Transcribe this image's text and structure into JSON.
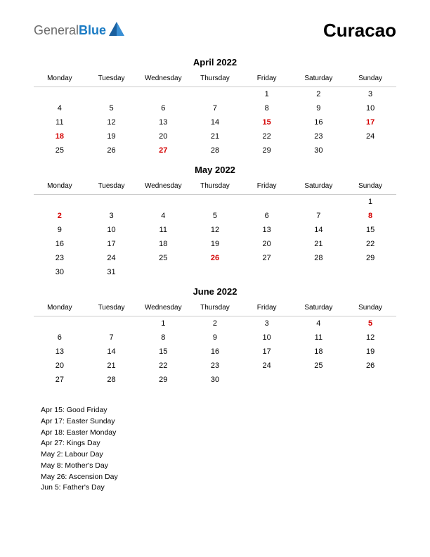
{
  "header": {
    "logo": {
      "general": "General",
      "blue": "Blue",
      "icon_color": "#1a5f9e"
    },
    "region": "Curacao"
  },
  "weekdays": [
    "Monday",
    "Tuesday",
    "Wednesday",
    "Thursday",
    "Friday",
    "Saturday",
    "Sunday"
  ],
  "months": [
    {
      "title": "April 2022",
      "weeks": [
        [
          null,
          null,
          null,
          null,
          {
            "d": 1
          },
          {
            "d": 2
          },
          {
            "d": 3
          }
        ],
        [
          {
            "d": 4
          },
          {
            "d": 5
          },
          {
            "d": 6
          },
          {
            "d": 7
          },
          {
            "d": 8
          },
          {
            "d": 9
          },
          {
            "d": 10
          }
        ],
        [
          {
            "d": 11
          },
          {
            "d": 12
          },
          {
            "d": 13
          },
          {
            "d": 14
          },
          {
            "d": 15,
            "h": true
          },
          {
            "d": 16
          },
          {
            "d": 17,
            "h": true
          }
        ],
        [
          {
            "d": 18,
            "h": true
          },
          {
            "d": 19
          },
          {
            "d": 20
          },
          {
            "d": 21
          },
          {
            "d": 22
          },
          {
            "d": 23
          },
          {
            "d": 24
          }
        ],
        [
          {
            "d": 25
          },
          {
            "d": 26
          },
          {
            "d": 27,
            "h": true
          },
          {
            "d": 28
          },
          {
            "d": 29
          },
          {
            "d": 30
          },
          null
        ]
      ]
    },
    {
      "title": "May 2022",
      "weeks": [
        [
          null,
          null,
          null,
          null,
          null,
          null,
          {
            "d": 1
          }
        ],
        [
          {
            "d": 2,
            "h": true
          },
          {
            "d": 3
          },
          {
            "d": 4
          },
          {
            "d": 5
          },
          {
            "d": 6
          },
          {
            "d": 7
          },
          {
            "d": 8,
            "h": true
          }
        ],
        [
          {
            "d": 9
          },
          {
            "d": 10
          },
          {
            "d": 11
          },
          {
            "d": 12
          },
          {
            "d": 13
          },
          {
            "d": 14
          },
          {
            "d": 15
          }
        ],
        [
          {
            "d": 16
          },
          {
            "d": 17
          },
          {
            "d": 18
          },
          {
            "d": 19
          },
          {
            "d": 20
          },
          {
            "d": 21
          },
          {
            "d": 22
          }
        ],
        [
          {
            "d": 23
          },
          {
            "d": 24
          },
          {
            "d": 25
          },
          {
            "d": 26,
            "h": true
          },
          {
            "d": 27
          },
          {
            "d": 28
          },
          {
            "d": 29
          }
        ],
        [
          {
            "d": 30
          },
          {
            "d": 31
          },
          null,
          null,
          null,
          null,
          null
        ]
      ]
    },
    {
      "title": "June 2022",
      "weeks": [
        [
          null,
          null,
          {
            "d": 1
          },
          {
            "d": 2
          },
          {
            "d": 3
          },
          {
            "d": 4
          },
          {
            "d": 5,
            "h": true
          }
        ],
        [
          {
            "d": 6
          },
          {
            "d": 7
          },
          {
            "d": 8
          },
          {
            "d": 9
          },
          {
            "d": 10
          },
          {
            "d": 11
          },
          {
            "d": 12
          }
        ],
        [
          {
            "d": 13
          },
          {
            "d": 14
          },
          {
            "d": 15
          },
          {
            "d": 16
          },
          {
            "d": 17
          },
          {
            "d": 18
          },
          {
            "d": 19
          }
        ],
        [
          {
            "d": 20
          },
          {
            "d": 21
          },
          {
            "d": 22
          },
          {
            "d": 23
          },
          {
            "d": 24
          },
          {
            "d": 25
          },
          {
            "d": 26
          }
        ],
        [
          {
            "d": 27
          },
          {
            "d": 28
          },
          {
            "d": 29
          },
          {
            "d": 30
          },
          null,
          null,
          null
        ]
      ]
    }
  ],
  "events": [
    "Apr 15: Good Friday",
    "Apr 17: Easter Sunday",
    "Apr 18: Easter Monday",
    "Apr 27: Kings Day",
    "May 2: Labour Day",
    "May 8: Mother's Day",
    "May 26: Ascension Day",
    "Jun 5: Father's Day"
  ],
  "styling": {
    "page_bg": "#ffffff",
    "text_color": "#000000",
    "holiday_color": "#d40000",
    "header_border": "#cccccc",
    "month_title_fontsize": 13,
    "weekday_fontsize": 10,
    "day_fontsize": 11,
    "event_fontsize": 10.5,
    "region_fontsize": 26
  }
}
